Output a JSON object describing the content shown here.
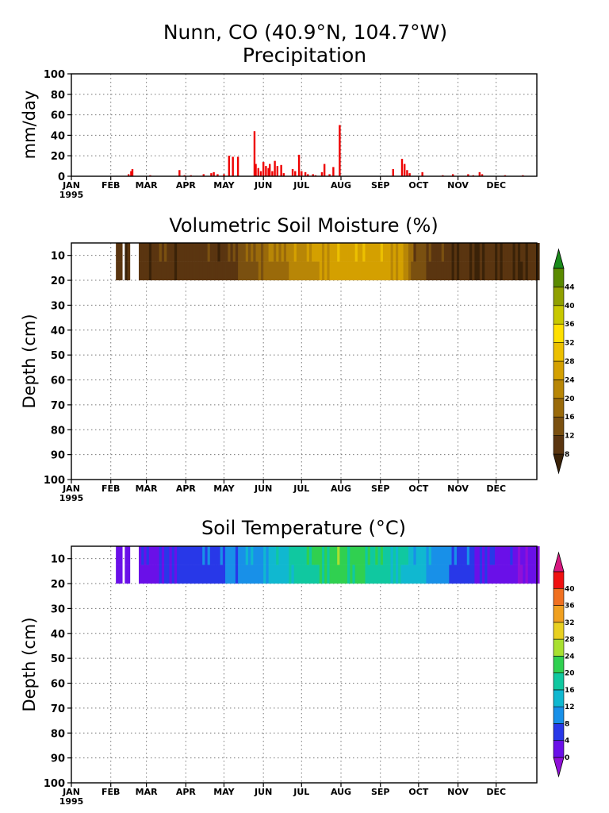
{
  "figure": {
    "title": "Nunn, CO   (40.9°N, 104.7°W)",
    "year_label": "1995"
  },
  "colors": {
    "precip_bar": "#ee0000",
    "moisture_scale": [
      "#3a2208",
      "#5a3510",
      "#7a5010",
      "#9a6a0a",
      "#b88606",
      "#d4a000",
      "#ecc000",
      "#ffe000",
      "#c8c800",
      "#90a000",
      "#5a8a00",
      "#1a8a1a"
    ],
    "temperature_scale": [
      "#9010d8",
      "#6a10e8",
      "#2838e8",
      "#1890e8",
      "#10b8d0",
      "#10c8a0",
      "#30d050",
      "#a8e030",
      "#e8d020",
      "#f0a020",
      "#f07020",
      "#f01010",
      "#d81880"
    ]
  },
  "chart_data": [
    {
      "id": "precipitation",
      "type": "bar",
      "title": "Precipitation",
      "xlabel": "",
      "ylabel": "mm/day",
      "ylim": [
        0,
        100
      ],
      "yticks": [
        0,
        20,
        40,
        60,
        80,
        100
      ],
      "month_labels": [
        "JAN",
        "FEB",
        "MAR",
        "APR",
        "MAY",
        "JUN",
        "JUL",
        "AUG",
        "SEP",
        "OCT",
        "NOV",
        "DEC"
      ],
      "grid": true,
      "points": [
        {
          "day": 45,
          "value": 2
        },
        {
          "day": 47,
          "value": 5
        },
        {
          "day": 48,
          "value": 7
        },
        {
          "day": 62,
          "value": 1
        },
        {
          "day": 85,
          "value": 6
        },
        {
          "day": 89,
          "value": 1
        },
        {
          "day": 94,
          "value": 1
        },
        {
          "day": 104,
          "value": 2
        },
        {
          "day": 110,
          "value": 3
        },
        {
          "day": 112,
          "value": 4
        },
        {
          "day": 115,
          "value": 2
        },
        {
          "day": 120,
          "value": 2
        },
        {
          "day": 124,
          "value": 20
        },
        {
          "day": 127,
          "value": 19
        },
        {
          "day": 131,
          "value": 19
        },
        {
          "day": 144,
          "value": 44
        },
        {
          "day": 145,
          "value": 12
        },
        {
          "day": 147,
          "value": 8
        },
        {
          "day": 149,
          "value": 5
        },
        {
          "day": 151,
          "value": 14
        },
        {
          "day": 153,
          "value": 10
        },
        {
          "day": 155,
          "value": 8
        },
        {
          "day": 156,
          "value": 12
        },
        {
          "day": 158,
          "value": 5
        },
        {
          "day": 160,
          "value": 15
        },
        {
          "day": 162,
          "value": 10
        },
        {
          "day": 165,
          "value": 11
        },
        {
          "day": 167,
          "value": 3
        },
        {
          "day": 174,
          "value": 7
        },
        {
          "day": 176,
          "value": 5
        },
        {
          "day": 179,
          "value": 21
        },
        {
          "day": 181,
          "value": 5
        },
        {
          "day": 184,
          "value": 4
        },
        {
          "day": 186,
          "value": 2
        },
        {
          "day": 190,
          "value": 2
        },
        {
          "day": 192,
          "value": 1
        },
        {
          "day": 197,
          "value": 4
        },
        {
          "day": 199,
          "value": 12
        },
        {
          "day": 203,
          "value": 2
        },
        {
          "day": 206,
          "value": 9
        },
        {
          "day": 211,
          "value": 50
        },
        {
          "day": 253,
          "value": 7
        },
        {
          "day": 260,
          "value": 17
        },
        {
          "day": 262,
          "value": 12
        },
        {
          "day": 264,
          "value": 6
        },
        {
          "day": 266,
          "value": 3
        },
        {
          "day": 276,
          "value": 4
        },
        {
          "day": 292,
          "value": 1
        },
        {
          "day": 300,
          "value": 2
        },
        {
          "day": 312,
          "value": 2
        },
        {
          "day": 316,
          "value": 1
        },
        {
          "day": 321,
          "value": 4
        },
        {
          "day": 323,
          "value": 2
        },
        {
          "day": 341,
          "value": 1
        },
        {
          "day": 355,
          "value": 1
        }
      ]
    },
    {
      "id": "soil_moisture",
      "type": "heatmap",
      "title": "Volumetric Soil Moisture (%)",
      "xlabel": "",
      "ylabel": "Depth (cm)",
      "ylim": [
        100,
        5
      ],
      "yticks": [
        10,
        20,
        30,
        40,
        50,
        60,
        70,
        80,
        90,
        100
      ],
      "month_labels": [
        "JAN",
        "FEB",
        "MAR",
        "APR",
        "MAY",
        "JUN",
        "JUL",
        "AUG",
        "SEP",
        "OCT",
        "NOV",
        "DEC"
      ],
      "colorbar_levels": [
        8,
        12,
        16,
        20,
        24,
        28,
        32,
        36,
        40,
        44
      ],
      "colorbar_tick_labels": [
        "8",
        "12",
        "16",
        "20",
        "24",
        "28",
        "32",
        "36",
        "40",
        "44"
      ],
      "data_depth_max": 20,
      "data_days": [
        [
          35,
          40
        ],
        [
          42,
          46
        ],
        [
          53,
          368
        ]
      ],
      "series": [
        {
          "name": "",
          "x": [
            35,
            45,
            55,
            70,
            90,
            110,
            125,
            140,
            155,
            170,
            185,
            200,
            215,
            230,
            245,
            260,
            270,
            285,
            300,
            320,
            340,
            360,
            368
          ],
          "values": [
            9,
            9,
            9,
            10,
            10,
            10,
            11,
            15,
            19,
            21,
            23,
            25,
            26,
            27,
            26,
            25,
            14,
            11,
            9,
            9,
            9,
            9,
            9
          ]
        }
      ]
    },
    {
      "id": "soil_temperature",
      "type": "heatmap",
      "title": "Soil Temperature (°C)",
      "xlabel": "",
      "ylabel": "Depth (cm)",
      "ylim": [
        100,
        5
      ],
      "yticks": [
        10,
        20,
        30,
        40,
        50,
        60,
        70,
        80,
        90,
        100
      ],
      "month_labels": [
        "JAN",
        "FEB",
        "MAR",
        "APR",
        "MAY",
        "JUN",
        "JUL",
        "AUG",
        "SEP",
        "OCT",
        "NOV",
        "DEC"
      ],
      "colorbar_levels": [
        0,
        4,
        8,
        12,
        16,
        20,
        24,
        28,
        32,
        36,
        40
      ],
      "colorbar_tick_labels": [
        "0",
        "4",
        "8",
        "12",
        "16",
        "20",
        "24",
        "28",
        "32",
        "36",
        "40"
      ],
      "data_depth_max": 20,
      "data_days": [
        [
          35,
          40
        ],
        [
          42,
          46
        ],
        [
          53,
          368
        ]
      ],
      "series": [
        {
          "name": "",
          "x": [
            35,
            50,
            65,
            80,
            95,
            110,
            125,
            140,
            155,
            170,
            185,
            200,
            215,
            230,
            245,
            260,
            275,
            290,
            305,
            320,
            340,
            355,
            368
          ],
          "values": [
            1,
            2,
            4,
            5,
            6,
            7,
            9,
            11,
            13,
            16,
            19,
            21,
            22,
            21,
            19,
            16,
            13,
            10,
            7,
            5,
            3,
            1,
            1
          ]
        }
      ]
    }
  ]
}
